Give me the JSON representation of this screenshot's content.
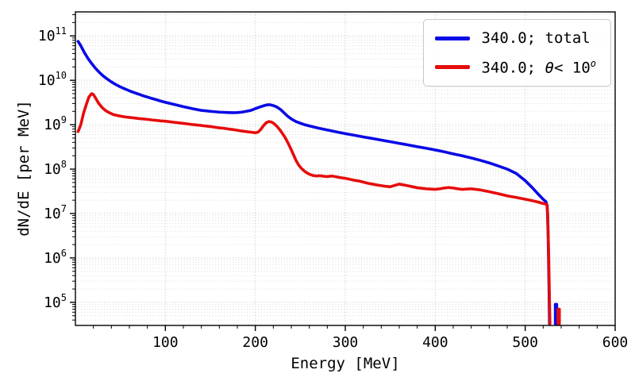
{
  "figure": {
    "background": "#ffffff",
    "frame_color": "#000000",
    "grid_major_color": "#c3c3c3",
    "grid_minor_color": "#dadada",
    "tick_color": "#000000"
  },
  "chart_data": {
    "type": "line",
    "title": "",
    "xlabel": "Energy [MeV]",
    "ylabel": "dN/dE [per MeV]",
    "xlim": [
      0,
      600
    ],
    "ylim_log10": [
      4.48,
      11.54
    ],
    "xticks": [
      100,
      200,
      300,
      400,
      500,
      600
    ],
    "x_minor_step": 20,
    "ytick_exponents": [
      5,
      6,
      7,
      8,
      9,
      10,
      11
    ],
    "grid": "both-dotted",
    "legend": {
      "position": "upper right",
      "entries": [
        {
          "label": "340.0; total",
          "color": "#0a0ae6"
        },
        {
          "label_pre": "340.0; ",
          "label_theta": "θ",
          "label_mid": "< 10",
          "label_sup": "o",
          "color": "#e60c0c"
        }
      ]
    },
    "series": [
      {
        "name": "total",
        "color": "#0a0ae6",
        "width": 3.6,
        "segments": [
          [
            [
              3,
              75000000000.0
            ],
            [
              6,
              60000000000.0
            ],
            [
              10,
              42000000000.0
            ],
            [
              14,
              31000000000.0
            ],
            [
              18,
              24000000000.0
            ],
            [
              22,
              19000000000.0
            ],
            [
              26,
              15500000000.0
            ],
            [
              30,
              13000000000.0
            ],
            [
              35,
              10800000000.0
            ],
            [
              40,
              9200000000.0
            ],
            [
              45,
              8000000000.0
            ],
            [
              50,
              7100000000.0
            ],
            [
              55,
              6400000000.0
            ],
            [
              60,
              5800000000.0
            ],
            [
              65,
              5300000000.0
            ],
            [
              70,
              4900000000.0
            ],
            [
              75,
              4500000000.0
            ],
            [
              80,
              4200000000.0
            ],
            [
              85,
              3900000000.0
            ],
            [
              90,
              3650000000.0
            ],
            [
              95,
              3400000000.0
            ],
            [
              100,
              3200000000.0
            ],
            [
              110,
              2850000000.0
            ],
            [
              120,
              2550000000.0
            ],
            [
              130,
              2300000000.0
            ],
            [
              140,
              2100000000.0
            ],
            [
              150,
              2000000000.0
            ],
            [
              160,
              1920000000.0
            ],
            [
              170,
              1880000000.0
            ],
            [
              175,
              1870000000.0
            ],
            [
              180,
              1880000000.0
            ],
            [
              185,
              1920000000.0
            ],
            [
              190,
              2000000000.0
            ],
            [
              195,
              2100000000.0
            ],
            [
              200,
              2300000000.0
            ],
            [
              205,
              2500000000.0
            ],
            [
              210,
              2700000000.0
            ],
            [
              213,
              2800000000.0
            ],
            [
              216,
              2820000000.0
            ],
            [
              220,
              2700000000.0
            ],
            [
              224,
              2500000000.0
            ],
            [
              228,
              2200000000.0
            ],
            [
              232,
              1850000000.0
            ],
            [
              236,
              1550000000.0
            ],
            [
              240,
              1350000000.0
            ],
            [
              245,
              1180000000.0
            ],
            [
              250,
              1080000000.0
            ],
            [
              255,
              1000000000.0
            ],
            [
              260,
              940000000.0
            ],
            [
              270,
              840000000.0
            ],
            [
              280,
              760000000.0
            ],
            [
              290,
              690000000.0
            ],
            [
              300,
              630000000.0
            ],
            [
              310,
              580000000.0
            ],
            [
              320,
              530000000.0
            ],
            [
              330,
              490000000.0
            ],
            [
              340,
              450000000.0
            ],
            [
              350,
              415000000.0
            ],
            [
              360,
              380000000.0
            ],
            [
              370,
              350000000.0
            ],
            [
              380,
              320000000.0
            ],
            [
              390,
              295000000.0
            ],
            [
              400,
              270000000.0
            ],
            [
              410,
              245000000.0
            ],
            [
              420,
              220000000.0
            ],
            [
              430,
              200000000.0
            ],
            [
              440,
              178000000.0
            ],
            [
              450,
              158000000.0
            ],
            [
              460,
              138000000.0
            ],
            [
              470,
              118000000.0
            ],
            [
              480,
              100000000.0
            ],
            [
              490,
              80000000.0
            ],
            [
              500,
              55000000.0
            ],
            [
              508,
              38000000.0
            ],
            [
              514,
              28000000.0
            ],
            [
              518,
              23000000.0
            ],
            [
              521,
              20000000.0
            ],
            [
              523,
              18500000.0
            ],
            [
              524.5,
              15000000.0
            ],
            [
              525.5,
              3000000.0
            ],
            [
              526.5,
              200000.0
            ],
            [
              527,
              33000.0
            ]
          ],
          [
            [
              533.5,
              33000.0
            ],
            [
              533.5,
              90000.0
            ],
            [
              535,
              90000.0
            ],
            [
              535,
              33000.0
            ]
          ]
        ]
      },
      {
        "name": "theta_lt_10deg",
        "color": "#e60c0c",
        "width": 3.6,
        "segments": [
          [
            [
              3,
              700000000.0
            ],
            [
              6,
              1000000000.0
            ],
            [
              9,
              1800000000.0
            ],
            [
              12,
              2800000000.0
            ],
            [
              15,
              4200000000.0
            ],
            [
              18,
              5000000000.0
            ],
            [
              20,
              4800000000.0
            ],
            [
              23,
              3800000000.0
            ],
            [
              26,
              3000000000.0
            ],
            [
              30,
              2400000000.0
            ],
            [
              34,
              2050000000.0
            ],
            [
              38,
              1850000000.0
            ],
            [
              42,
              1700000000.0
            ],
            [
              46,
              1620000000.0
            ],
            [
              50,
              1560000000.0
            ],
            [
              55,
              1500000000.0
            ],
            [
              60,
              1460000000.0
            ],
            [
              65,
              1420000000.0
            ],
            [
              70,
              1380000000.0
            ],
            [
              75,
              1350000000.0
            ],
            [
              80,
              1320000000.0
            ],
            [
              85,
              1280000000.0
            ],
            [
              90,
              1250000000.0
            ],
            [
              95,
              1220000000.0
            ],
            [
              100,
              1200000000.0
            ],
            [
              110,
              1130000000.0
            ],
            [
              120,
              1070000000.0
            ],
            [
              130,
              1010000000.0
            ],
            [
              140,
              960000000.0
            ],
            [
              150,
              910000000.0
            ],
            [
              155,
              880000000.0
            ],
            [
              160,
              850000000.0
            ],
            [
              165,
              830000000.0
            ],
            [
              170,
              800000000.0
            ],
            [
              175,
              780000000.0
            ],
            [
              180,
              750000000.0
            ],
            [
              185,
              720000000.0
            ],
            [
              190,
              700000000.0
            ],
            [
              195,
              680000000.0
            ],
            [
              200,
              660000000.0
            ],
            [
              203,
              680000000.0
            ],
            [
              206,
              780000000.0
            ],
            [
              209,
              950000000.0
            ],
            [
              212,
              1100000000.0
            ],
            [
              215,
              1180000000.0
            ],
            [
              218,
              1150000000.0
            ],
            [
              221,
              1050000000.0
            ],
            [
              224,
              920000000.0
            ],
            [
              227,
              780000000.0
            ],
            [
              230,
              640000000.0
            ],
            [
              233,
              520000000.0
            ],
            [
              236,
              400000000.0
            ],
            [
              239,
              300000000.0
            ],
            [
              242,
              220000000.0
            ],
            [
              245,
              160000000.0
            ],
            [
              248,
              125000000.0
            ],
            [
              251,
              105000000.0
            ],
            [
              254,
              92000000.0
            ],
            [
              257,
              83000000.0
            ],
            [
              260,
              77000000.0
            ],
            [
              264,
              72000000.0
            ],
            [
              268,
              70000000.0
            ],
            [
              272,
              71000000.0
            ],
            [
              276,
              69000000.0
            ],
            [
              280,
              68000000.0
            ],
            [
              285,
              70000000.0
            ],
            [
              290,
              67000000.0
            ],
            [
              295,
              64000000.0
            ],
            [
              300,
              62000000.0
            ],
            [
              305,
              59000000.0
            ],
            [
              310,
              56000000.0
            ],
            [
              315,
              54000000.0
            ],
            [
              320,
              51000000.0
            ],
            [
              325,
              48000000.0
            ],
            [
              330,
              46000000.0
            ],
            [
              335,
              44000000.0
            ],
            [
              340,
              42500000.0
            ],
            [
              345,
              41000000.0
            ],
            [
              350,
              40000000.0
            ],
            [
              355,
              43000000.0
            ],
            [
              360,
              46000000.0
            ],
            [
              365,
              44000000.0
            ],
            [
              370,
              42000000.0
            ],
            [
              375,
              40000000.0
            ],
            [
              380,
              38000000.0
            ],
            [
              385,
              37000000.0
            ],
            [
              390,
              36000000.0
            ],
            [
              395,
              35500000.0
            ],
            [
              400,
              35000000.0
            ],
            [
              405,
              36000000.0
            ],
            [
              410,
              37500000.0
            ],
            [
              415,
              38500000.0
            ],
            [
              420,
              37500000.0
            ],
            [
              425,
              36000000.0
            ],
            [
              430,
              35000000.0
            ],
            [
              435,
              35500000.0
            ],
            [
              440,
              36000000.0
            ],
            [
              445,
              35000000.0
            ],
            [
              450,
              34000000.0
            ],
            [
              455,
              32500000.0
            ],
            [
              460,
              31000000.0
            ],
            [
              465,
              29500000.0
            ],
            [
              470,
              28000000.0
            ],
            [
              475,
              26500000.0
            ],
            [
              480,
              25000000.0
            ],
            [
              485,
              24000000.0
            ],
            [
              490,
              23000000.0
            ],
            [
              495,
              22000000.0
            ],
            [
              500,
              21000000.0
            ],
            [
              505,
              20000000.0
            ],
            [
              510,
              19000000.0
            ],
            [
              515,
              18000000.0
            ],
            [
              519,
              17000000.0
            ],
            [
              522,
              16500000.0
            ],
            [
              524,
              16000000.0
            ],
            [
              525,
              10000000.0
            ],
            [
              526,
              1500000.0
            ],
            [
              527,
              120000.0
            ],
            [
              527.5,
              33000.0
            ]
          ],
          [
            [
              536.5,
              33000.0
            ],
            [
              536.5,
              70000.0
            ],
            [
              538,
              70000.0
            ],
            [
              538,
              33000.0
            ]
          ]
        ]
      }
    ]
  }
}
